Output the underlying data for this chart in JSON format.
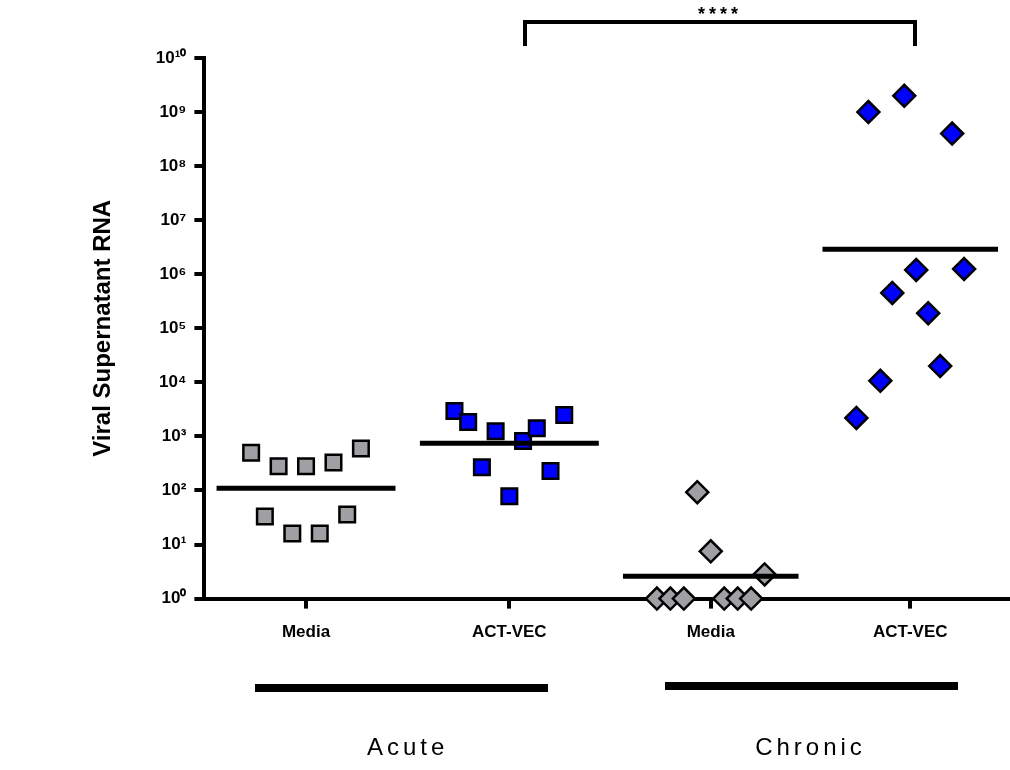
{
  "chart_data": [
    {
      "type": "scatter",
      "ylabel": "Viral Supernatant RNA",
      "xlabel": "Acute",
      "categories": [
        "Media",
        "ACT-VEC"
      ],
      "log": "y",
      "ylim": [
        1,
        10000000000
      ],
      "yticks": [
        {
          "value": 1,
          "label": "10⁰"
        },
        {
          "value": 10,
          "label": "10¹"
        },
        {
          "value": 100,
          "label": "10²"
        },
        {
          "value": 1000,
          "label": "10³"
        },
        {
          "value": 10000,
          "label": "10⁴"
        },
        {
          "value": 100000,
          "label": "10⁵"
        },
        {
          "value": 1000000,
          "label": "10⁶"
        },
        {
          "value": 10000000,
          "label": "10⁷"
        },
        {
          "value": 100000000,
          "label": "10⁸"
        },
        {
          "value": 1000000000,
          "label": "10⁹"
        },
        {
          "value": 10000000000,
          "label": "10¹⁰"
        }
      ],
      "grid": false,
      "series": [
        {
          "color": "#a0a0a4",
          "marker": "square",
          "x": [
            "Media",
            "Media",
            "Media",
            "Media",
            "Media",
            "Media",
            "Media",
            "Media",
            "Media"
          ],
          "values": [
            500,
            33,
            280,
            16,
            280,
            16,
            330,
            36,
            600
          ]
        },
        {
          "color": "#0000ff",
          "marker": "square",
          "x": [
            "ACT-VEC",
            "ACT-VEC",
            "ACT-VEC",
            "ACT-VEC",
            "ACT-VEC",
            "ACT-VEC",
            "ACT-VEC",
            "ACT-VEC",
            "ACT-VEC"
          ],
          "values": [
            2950,
            1850,
            270,
            1250,
            78,
            820,
            1420,
            230,
            2500
          ]
        }
      ],
      "ref_lines": [
        {
          "axis": "y",
          "value": 110,
          "color": "#000000"
        },
        {
          "axis": "y",
          "value": 750,
          "color": "#000000"
        }
      ]
    },
    {
      "type": "scatter",
      "xlabel": "Chronic",
      "categories": [
        "Media",
        "ACT-VEC"
      ],
      "log": "y",
      "ylim": [
        1,
        10000000000
      ],
      "tick_labels": "x",
      "grid": false,
      "series": [
        {
          "color": "#a0a0a4",
          "marker": "diamond",
          "x": [
            "Media",
            "Media",
            "Media",
            "Media",
            "Media",
            "Media",
            "Media",
            "Media",
            "Media"
          ],
          "values": [
            1,
            1,
            1,
            93,
            7.5,
            1,
            1,
            1,
            2.8
          ]
        },
        {
          "color": "#0000ff",
          "marker": "diamond",
          "x": [
            "ACT-VEC",
            "ACT-VEC",
            "ACT-VEC",
            "ACT-VEC",
            "ACT-VEC",
            "ACT-VEC",
            "ACT-VEC",
            "ACT-VEC",
            "ACT-VEC",
            "ACT-VEC"
          ],
          "values": [
            2200,
            1000000000,
            10700,
            450000,
            2000000000,
            1200000,
            190000,
            20000,
            400000000,
            1250000
          ]
        }
      ],
      "ref_lines": [
        {
          "axis": "y",
          "value": 2.6,
          "color": "#000000"
        },
        {
          "axis": "y",
          "value": 2900000,
          "color": "#000000"
        }
      ],
      "annotations": [
        "****"
      ]
    }
  ]
}
